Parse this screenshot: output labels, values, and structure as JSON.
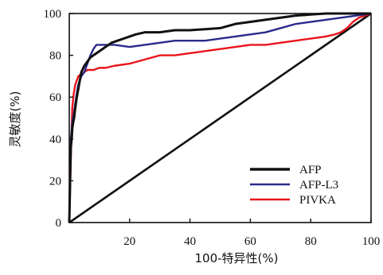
{
  "chart_data": {
    "type": "line",
    "xlabel": "100-特异性(%)",
    "ylabel": "灵敏度(%)",
    "xlim": [
      0,
      100
    ],
    "ylim": [
      0,
      100
    ],
    "x_ticks": [
      "20",
      "40",
      "60",
      "80",
      "100"
    ],
    "y_ticks": [
      "0",
      "20",
      "40",
      "60",
      "80",
      "100"
    ],
    "grid": false,
    "legend_position": "bottom-right",
    "reference_line": {
      "x": [
        0,
        100
      ],
      "y": [
        0,
        100
      ],
      "color": "#111111"
    },
    "series": [
      {
        "name": "AFP",
        "color": "#111111",
        "x": [
          0,
          0.5,
          0.8,
          1.0,
          1.3,
          1.6,
          2.0,
          2.5,
          3.0,
          3.5,
          4.0,
          5.0,
          6.0,
          7.0,
          8.0,
          9.0,
          10,
          11,
          12,
          14,
          16,
          18,
          20,
          22,
          25,
          30,
          35,
          40,
          45,
          50,
          55,
          60,
          65,
          70,
          75,
          80,
          85,
          90,
          95,
          100
        ],
        "y": [
          0,
          36,
          40,
          45,
          48,
          50,
          55,
          60,
          64,
          68,
          72,
          75,
          77,
          79,
          80,
          81,
          82,
          83,
          84,
          86,
          87,
          88,
          89,
          90,
          91,
          91,
          92,
          92,
          92.5,
          93,
          95,
          96,
          97,
          98,
          99,
          99.5,
          100,
          100,
          100,
          100
        ]
      },
      {
        "name": "AFP-L3",
        "color": "#2a2a8c",
        "x": [
          0,
          0.5,
          0.8,
          1.0,
          1.5,
          2.0,
          2.5,
          3.0,
          4.0,
          5.0,
          6.0,
          7.0,
          8.0,
          9.0,
          10,
          15,
          20,
          25,
          30,
          35,
          40,
          45,
          50,
          55,
          60,
          65,
          70,
          75,
          80,
          85,
          90,
          95,
          100
        ],
        "y": [
          0,
          40,
          44,
          48,
          52,
          57,
          62,
          66,
          70,
          72,
          76,
          80,
          83,
          85,
          85,
          85,
          84,
          85,
          86,
          87,
          87,
          87,
          88,
          89,
          90,
          91,
          93,
          95,
          96,
          97,
          98,
          99,
          100
        ]
      },
      {
        "name": "PIVKA",
        "color": "#e8141c",
        "x": [
          0,
          0.5,
          0.8,
          1.0,
          1.5,
          2.0,
          2.5,
          3.0,
          4.0,
          5.0,
          6.0,
          8.0,
          10,
          12,
          15,
          20,
          25,
          30,
          35,
          40,
          45,
          50,
          55,
          60,
          65,
          70,
          75,
          80,
          85,
          88,
          90,
          92,
          94,
          96,
          98,
          100
        ],
        "y": [
          0,
          30,
          45,
          55,
          62,
          66,
          68,
          70,
          71,
          72,
          73,
          73,
          74,
          74,
          75,
          76,
          78,
          80,
          80,
          81,
          82,
          83,
          84,
          85,
          85,
          86,
          87,
          88,
          89,
          90,
          91,
          93,
          96,
          98,
          99,
          100
        ]
      }
    ]
  }
}
